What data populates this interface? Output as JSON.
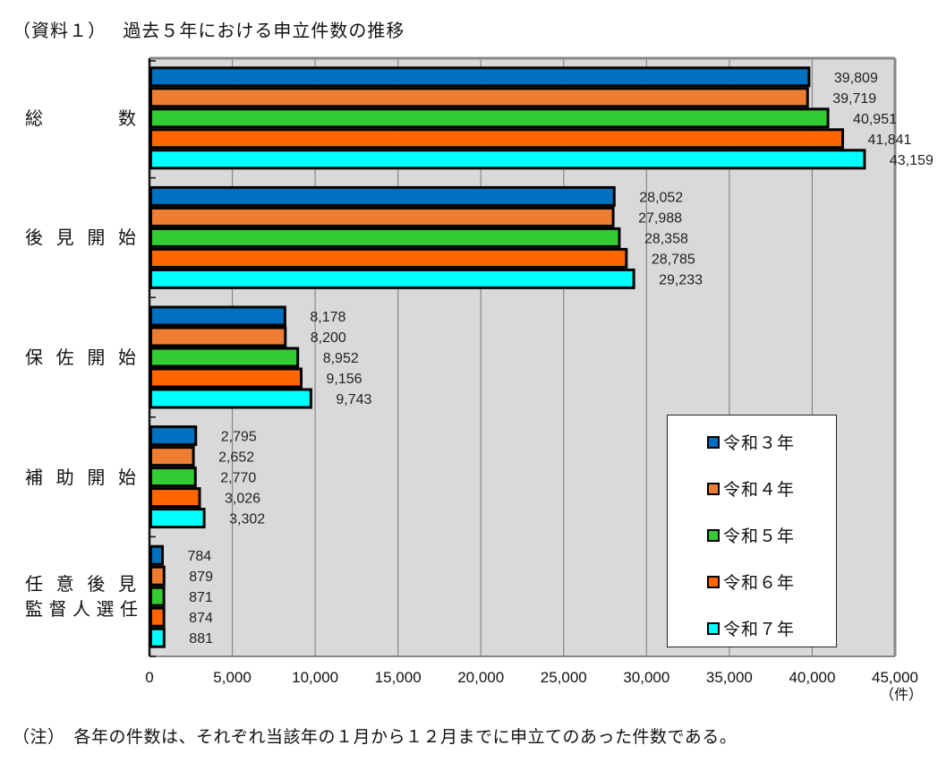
{
  "title": "（資料１）　 過去５年における申立件数の推移",
  "note": "（注）　各年の件数は、それぞれ当該年の１月から１２月までに申立てのあった件数である。",
  "chart_data": {
    "type": "bar",
    "orientation": "horizontal",
    "title": "過去５年における申立件数の推移",
    "categories": [
      "総数",
      "後見開始",
      "保佐開始",
      "補助開始",
      "任意後見監督人選任"
    ],
    "category_labels": [
      [
        "総",
        "数"
      ],
      [
        "後",
        "見",
        "開",
        "始"
      ],
      [
        "保",
        "佐",
        "開",
        "始"
      ],
      [
        "補",
        "助",
        "開",
        "始"
      ],
      [
        "任",
        "意",
        "後",
        "見"
      ]
    ],
    "category_label_line2": [
      "",
      "",
      "",
      "",
      "監督人選任"
    ],
    "series": [
      {
        "name": "令和３年",
        "color": "#0070C0",
        "values": [
          39809,
          28052,
          8178,
          2795,
          784
        ],
        "labels": [
          "39,809",
          "28,052",
          "8,178",
          "2,795",
          "784"
        ]
      },
      {
        "name": "令和４年",
        "color": "#ED7D31",
        "values": [
          39719,
          27988,
          8200,
          2652,
          879
        ],
        "labels": [
          "39,719",
          "27,988",
          "8,200",
          "2,652",
          "879"
        ]
      },
      {
        "name": "令和５年",
        "color": "#33CC33",
        "values": [
          40951,
          28358,
          8952,
          2770,
          871
        ],
        "labels": [
          "40,951",
          "28,358",
          "8,952",
          "2,770",
          "871"
        ]
      },
      {
        "name": "令和６年",
        "color": "#FF6600",
        "values": [
          41841,
          28785,
          9156,
          3026,
          874
        ],
        "labels": [
          "41,841",
          "28,785",
          "9,156",
          "3,026",
          "874"
        ]
      },
      {
        "name": "令和７年",
        "color": "#00FFFF",
        "values": [
          43159,
          29233,
          9743,
          3302,
          881
        ],
        "labels": [
          "43,159",
          "29,233",
          "9,743",
          "3,302",
          "881"
        ]
      }
    ],
    "xlim": [
      0,
      45000
    ],
    "xticks": [
      0,
      5000,
      10000,
      15000,
      20000,
      25000,
      30000,
      35000,
      40000,
      45000
    ],
    "xtick_labels": [
      "0",
      "5,000",
      "10,000",
      "15,000",
      "20,000",
      "25,000",
      "30,000",
      "35,000",
      "40,000",
      "45,000"
    ],
    "xlabel": "（件）",
    "grid": true,
    "legend_position": "bottom-right",
    "plot_background": "#D9D9D9"
  }
}
